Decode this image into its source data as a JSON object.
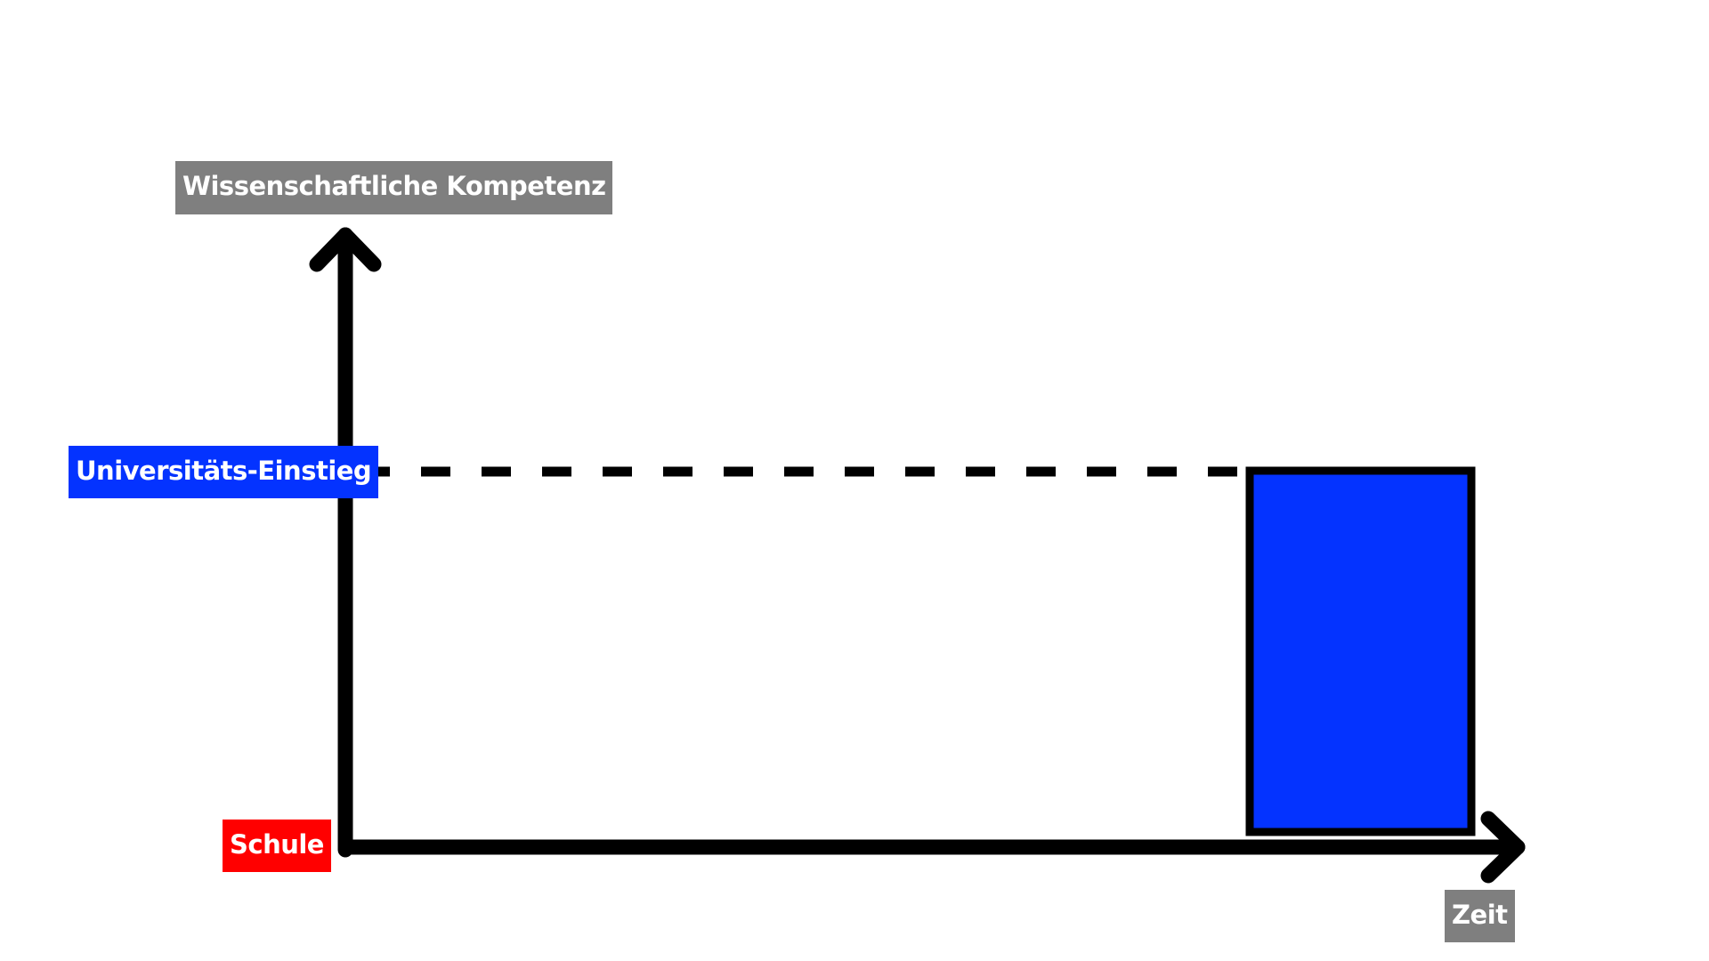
{
  "labels": {
    "y_axis": "Wissenschaftliche Kompetenz",
    "university_entry": "Universitäts-Einstieg",
    "school": "Schule",
    "x_axis": "Zeit"
  },
  "colors": {
    "axis": "#000000",
    "label_gray": "#7f7f7f",
    "university_blue": "#0433ff",
    "school_red": "#ff0000",
    "background": "#ffffff"
  },
  "shapes": {
    "vertical_arrow": "arrow-up",
    "horizontal_arrow": "arrow-right",
    "threshold_line": "dashed",
    "block": "blue-rectangle"
  }
}
